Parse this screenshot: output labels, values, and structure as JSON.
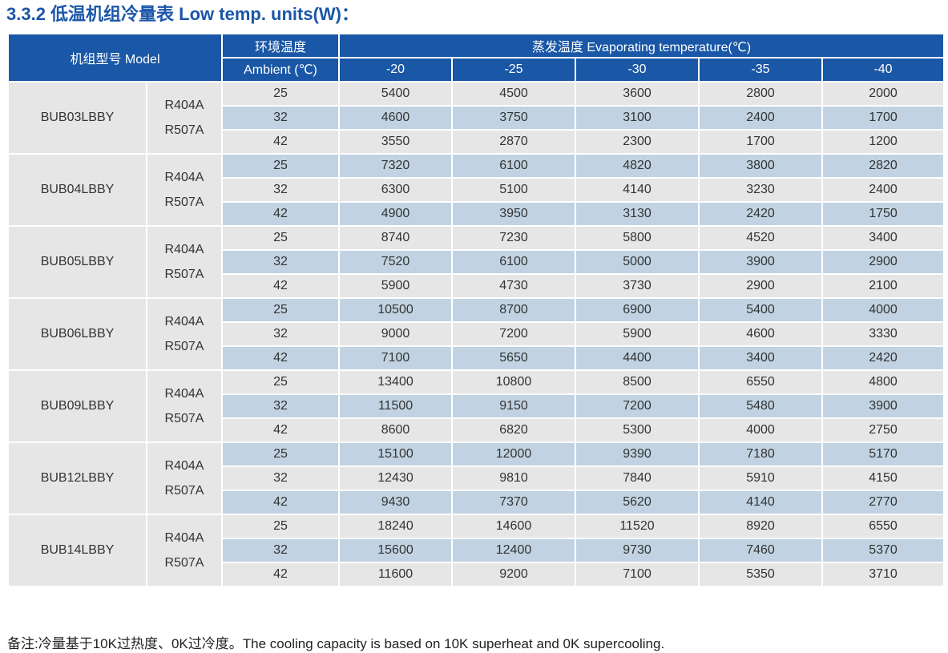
{
  "title": "3.3.2 低温机组冷量表 Low temp. units(W)：",
  "header": {
    "model_label": "机组型号 Model",
    "ambient_label_cn": "环境温度",
    "ambient_label_en": "Ambient (℃)",
    "evap_label": "蒸发温度 Evaporating temperature(℃)",
    "evap_temps": [
      "-20",
      "-25",
      "-30",
      "-35",
      "-40"
    ]
  },
  "units": [
    {
      "model": "BUB03LBBY",
      "refrigerants": [
        "R404A",
        "R507A"
      ],
      "rows": [
        {
          "ambient": "25",
          "values": [
            "5400",
            "4500",
            "3600",
            "2800",
            "2000"
          ]
        },
        {
          "ambient": "32",
          "values": [
            "4600",
            "3750",
            "3100",
            "2400",
            "1700"
          ]
        },
        {
          "ambient": "42",
          "values": [
            "3550",
            "2870",
            "2300",
            "1700",
            "1200"
          ]
        }
      ]
    },
    {
      "model": "BUB04LBBY",
      "refrigerants": [
        "R404A",
        "R507A"
      ],
      "rows": [
        {
          "ambient": "25",
          "values": [
            "7320",
            "6100",
            "4820",
            "3800",
            "2820"
          ]
        },
        {
          "ambient": "32",
          "values": [
            "6300",
            "5100",
            "4140",
            "3230",
            "2400"
          ]
        },
        {
          "ambient": "42",
          "values": [
            "4900",
            "3950",
            "3130",
            "2420",
            "1750"
          ]
        }
      ]
    },
    {
      "model": "BUB05LBBY",
      "refrigerants": [
        "R404A",
        "R507A"
      ],
      "rows": [
        {
          "ambient": "25",
          "values": [
            "8740",
            "7230",
            "5800",
            "4520",
            "3400"
          ]
        },
        {
          "ambient": "32",
          "values": [
            "7520",
            "6100",
            "5000",
            "3900",
            "2900"
          ]
        },
        {
          "ambient": "42",
          "values": [
            "5900",
            "4730",
            "3730",
            "2900",
            "2100"
          ]
        }
      ]
    },
    {
      "model": "BUB06LBBY",
      "refrigerants": [
        "R404A",
        "R507A"
      ],
      "rows": [
        {
          "ambient": "25",
          "values": [
            "10500",
            "8700",
            "6900",
            "5400",
            "4000"
          ]
        },
        {
          "ambient": "32",
          "values": [
            "9000",
            "7200",
            "5900",
            "4600",
            "3330"
          ]
        },
        {
          "ambient": "42",
          "values": [
            "7100",
            "5650",
            "4400",
            "3400",
            "2420"
          ]
        }
      ]
    },
    {
      "model": "BUB09LBBY",
      "refrigerants": [
        "R404A",
        "R507A"
      ],
      "rows": [
        {
          "ambient": "25",
          "values": [
            "13400",
            "10800",
            "8500",
            "6550",
            "4800"
          ]
        },
        {
          "ambient": "32",
          "values": [
            "11500",
            "9150",
            "7200",
            "5480",
            "3900"
          ]
        },
        {
          "ambient": "42",
          "values": [
            "8600",
            "6820",
            "5300",
            "4000",
            "2750"
          ]
        }
      ]
    },
    {
      "model": "BUB12LBBY",
      "refrigerants": [
        "R404A",
        "R507A"
      ],
      "rows": [
        {
          "ambient": "25",
          "values": [
            "15100",
            "12000",
            "9390",
            "7180",
            "5170"
          ]
        },
        {
          "ambient": "32",
          "values": [
            "12430",
            "9810",
            "7840",
            "5910",
            "4150"
          ]
        },
        {
          "ambient": "42",
          "values": [
            "9430",
            "7370",
            "5620",
            "4140",
            "2770"
          ]
        }
      ]
    },
    {
      "model": "BUB14LBBY",
      "refrigerants": [
        "R404A",
        "R507A"
      ],
      "rows": [
        {
          "ambient": "25",
          "values": [
            "18240",
            "14600",
            "11520",
            "8920",
            "6550"
          ]
        },
        {
          "ambient": "32",
          "values": [
            "15600",
            "12400",
            "9730",
            "7460",
            "5370"
          ]
        },
        {
          "ambient": "42",
          "values": [
            "11600",
            "9200",
            "7100",
            "5350",
            "3710"
          ]
        }
      ]
    }
  ],
  "footnote": "备注:冷量基于10K过热度、0K过冷度。The cooling capacity is based on 10K superheat and 0K supercooling.",
  "colors": {
    "title": "#1a56a8",
    "header_bg": "#1a57a6",
    "row_light": "#e6e6e6",
    "row_blue": "#c1d3e2"
  }
}
